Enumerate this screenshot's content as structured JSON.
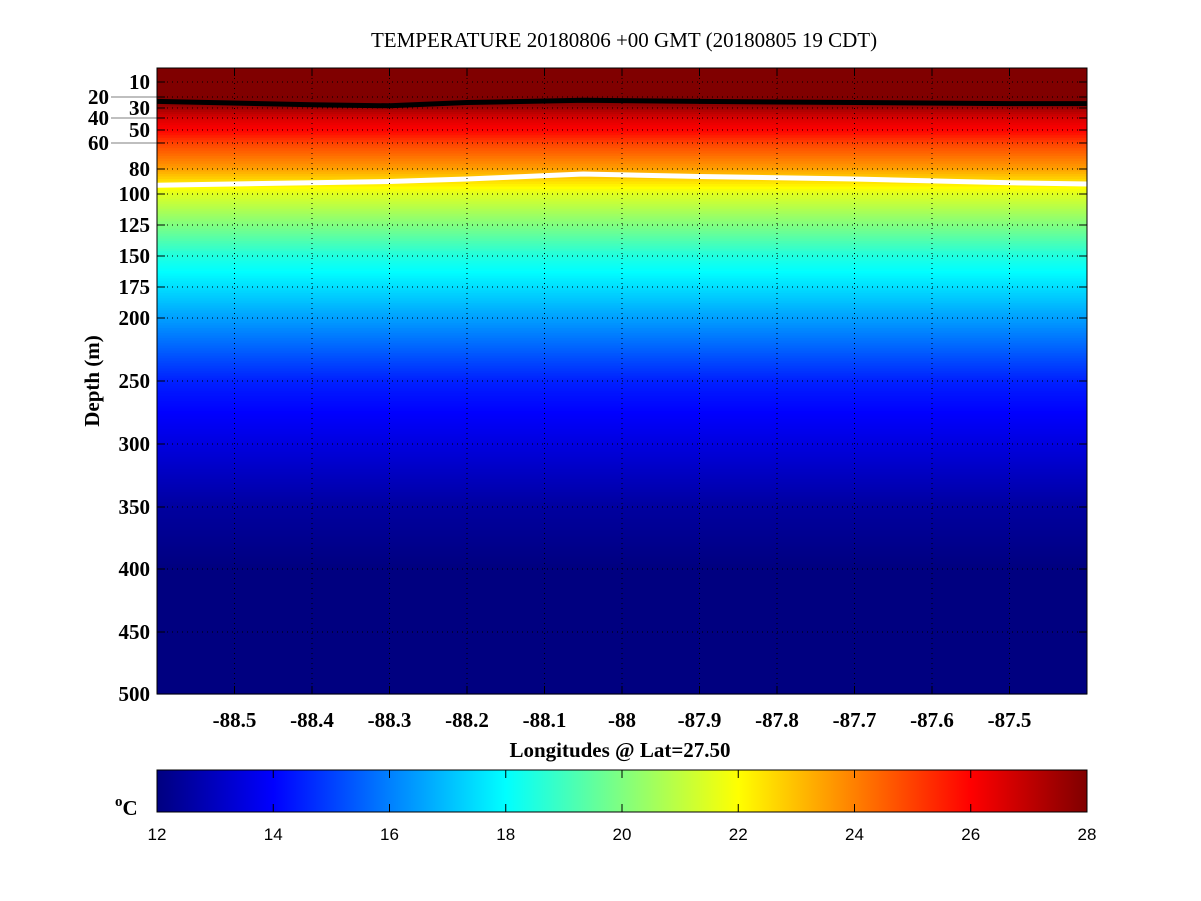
{
  "chart_data": {
    "type": "heatmap",
    "title": "TEMPERATURE 20180806 +00 GMT (20180805 19 CDT)",
    "xlabel": "Longitudes @ Lat=27.50",
    "ylabel": "Depth (m)",
    "xlim": [
      -88.6,
      -87.4
    ],
    "ylim": [
      500,
      0
    ],
    "xticks": [
      -88.5,
      -88.4,
      -88.3,
      -88.2,
      -88.1,
      -88,
      -87.9,
      -87.8,
      -87.7,
      -87.6,
      -87.5
    ],
    "xtick_labels": [
      "-88.5",
      "-88.4",
      "-88.3",
      "-88.2",
      "-88.1",
      "-88",
      "-87.9",
      "-87.8",
      "-87.7",
      "-87.6",
      "-87.5"
    ],
    "yticks": [
      10,
      20,
      30,
      40,
      50,
      60,
      80,
      100,
      125,
      150,
      175,
      200,
      250,
      300,
      350,
      400,
      450,
      500
    ],
    "grid": true,
    "colormap": "jet",
    "clim": [
      12,
      28
    ],
    "colorbar": {
      "label": "oC",
      "ticks": [
        12,
        14,
        16,
        18,
        20,
        22,
        24,
        26,
        28
      ],
      "placement": "bottom"
    },
    "temperature_profile": {
      "depth": [
        0,
        25,
        30,
        40,
        50,
        60,
        80,
        90,
        100,
        125,
        150,
        175,
        200,
        250,
        300,
        350,
        400,
        500
      ],
      "temperature": [
        28,
        28,
        27.5,
        26.6,
        26,
        25,
        23.5,
        22.5,
        21.5,
        20,
        18.5,
        17.5,
        16.5,
        14.5,
        13.5,
        12.5,
        12,
        12
      ]
    },
    "contours": [
      {
        "color": "#000000",
        "longitude": [
          -88.6,
          -88.4,
          -88.3,
          -88.2,
          -88.05,
          -87.9,
          -87.7,
          -87.5,
          -87.4
        ],
        "depth": [
          24,
          27,
          28,
          25,
          23,
          24,
          25,
          26,
          26
        ]
      },
      {
        "color": "#ffffff",
        "longitude": [
          -88.6,
          -88.4,
          -88.3,
          -88.2,
          -88.05,
          -87.9,
          -87.7,
          -87.5,
          -87.4
        ],
        "depth": [
          93,
          91,
          90,
          88,
          84,
          86,
          88,
          91,
          92
        ]
      }
    ]
  }
}
